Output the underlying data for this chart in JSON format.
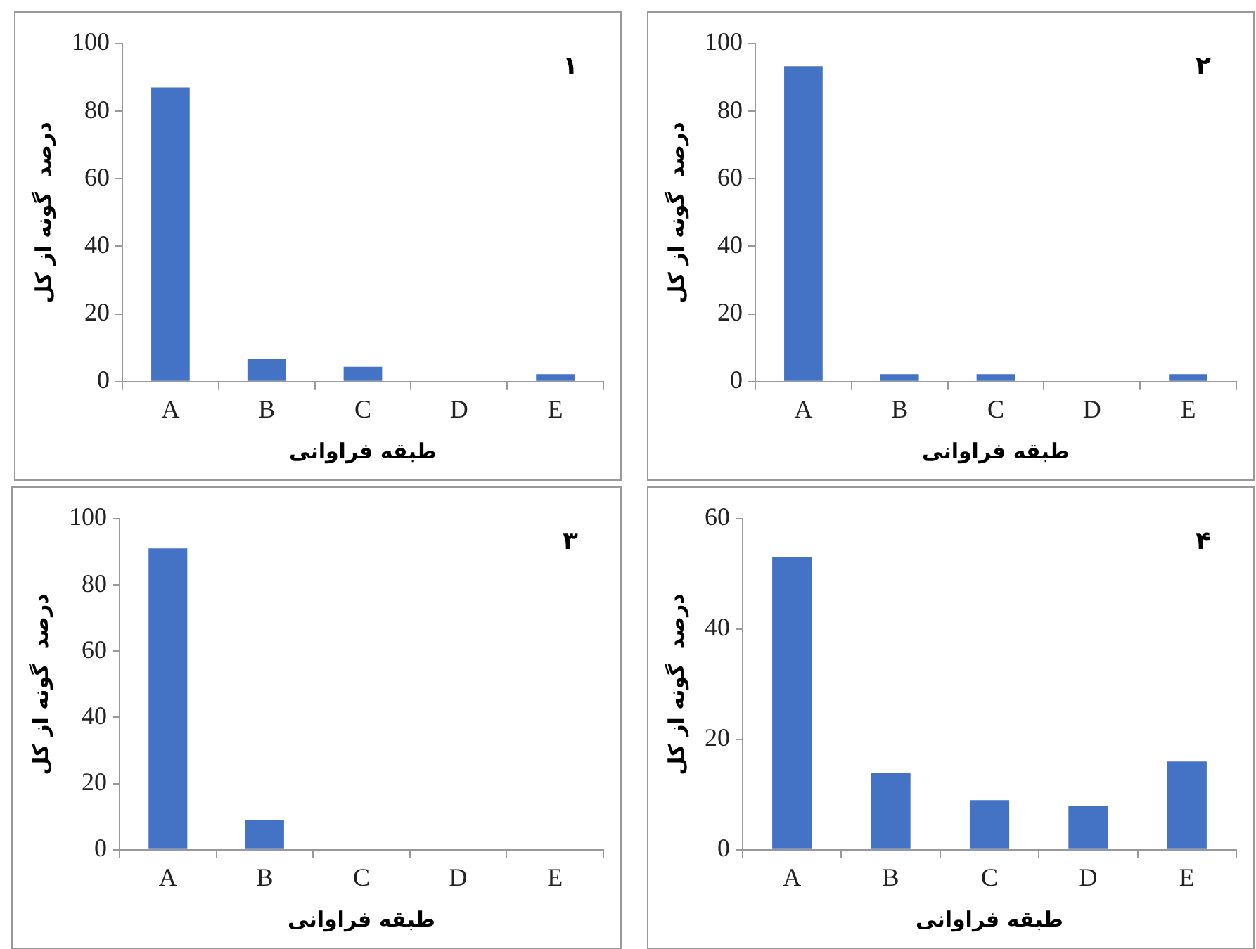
{
  "chart_data": [
    {
      "type": "bar",
      "annotations": [
        "۱"
      ],
      "xlabel": "طبقه فراوانی",
      "ylabel": "درصد  گونه از کل",
      "categories": [
        "A",
        "B",
        "C",
        "D",
        "E"
      ],
      "values": [
        87,
        6.7,
        4.4,
        0,
        2.2
      ],
      "color": "#4472c4",
      "ylim": [
        0,
        100
      ],
      "yticks": [
        0,
        20,
        40,
        60,
        80,
        100
      ],
      "grid": false
    },
    {
      "type": "bar",
      "annotations": [
        "۲"
      ],
      "xlabel": "طبقه فراوانی",
      "ylabel": "درصد  گونه از کل",
      "categories": [
        "A",
        "B",
        "C",
        "D",
        "E"
      ],
      "values": [
        93.3,
        2.2,
        2.2,
        0,
        2.2
      ],
      "color": "#4472c4",
      "ylim": [
        0,
        100
      ],
      "yticks": [
        0,
        20,
        40,
        60,
        80,
        100
      ],
      "grid": false
    },
    {
      "type": "bar",
      "annotations": [
        "۳"
      ],
      "xlabel": "طبقه فراوانی",
      "ylabel": "درصد  گونه از کل",
      "categories": [
        "A",
        "B",
        "C",
        "D",
        "E"
      ],
      "values": [
        91,
        9,
        0,
        0,
        0
      ],
      "color": "#4472c4",
      "ylim": [
        0,
        100
      ],
      "yticks": [
        0,
        20,
        40,
        60,
        80,
        100
      ],
      "grid": false
    },
    {
      "type": "bar",
      "annotations": [
        "۴"
      ],
      "xlabel": "طبقه فراوانی",
      "ylabel": "درصد  گونه از کل",
      "categories": [
        "A",
        "B",
        "C",
        "D",
        "E"
      ],
      "values": [
        53,
        14,
        9,
        8,
        16
      ],
      "color": "#4472c4",
      "ylim": [
        0,
        60
      ],
      "yticks": [
        0,
        20,
        40,
        60
      ],
      "grid": false
    }
  ]
}
